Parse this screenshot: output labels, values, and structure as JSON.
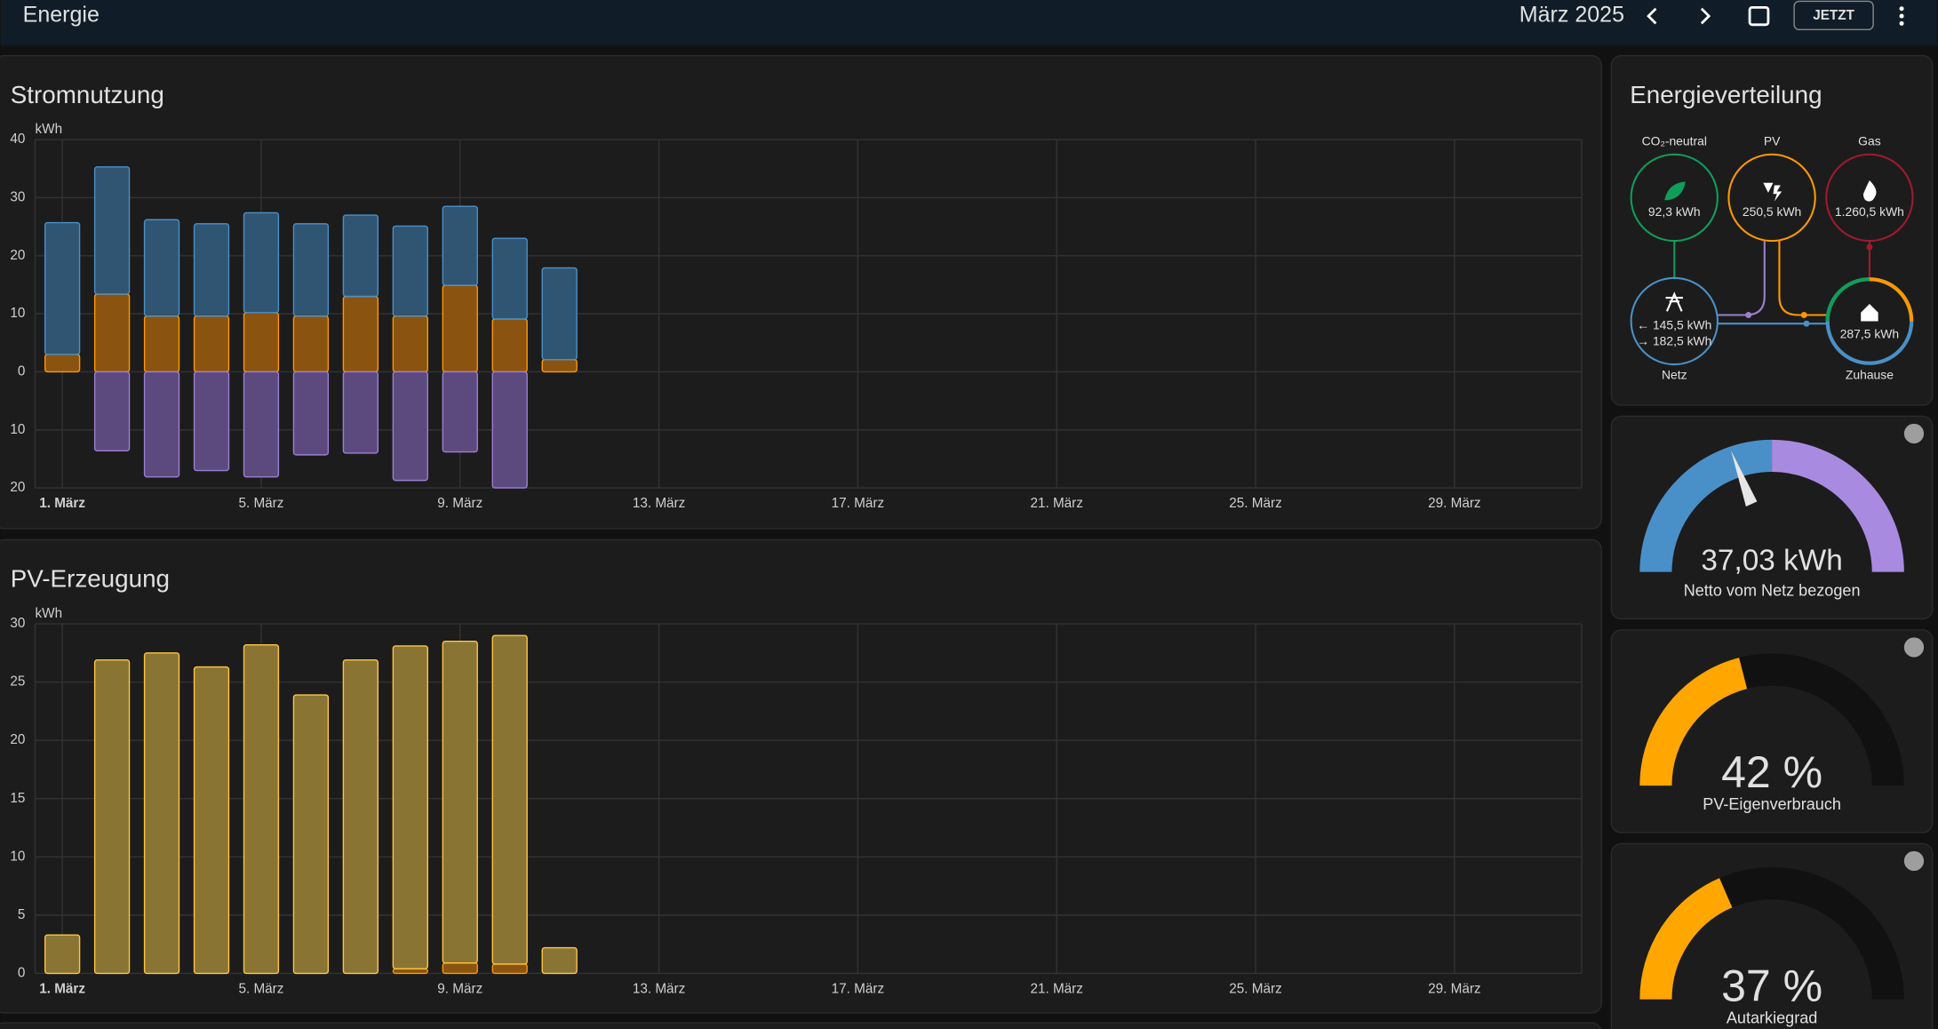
{
  "header": {
    "title": "Energie",
    "period": "März 2025",
    "today_button": "JETZT"
  },
  "chart_data": [
    {
      "type": "bar",
      "stacked": true,
      "title": "Stromnutzung",
      "y_label": "kWh",
      "categories": [
        "1. März",
        null,
        null,
        null,
        "5. März",
        null,
        null,
        null,
        "9. März",
        null,
        null,
        null,
        "13. März",
        null,
        null,
        null,
        "17. März",
        null,
        null,
        null,
        "21. März",
        null,
        null,
        null,
        "25. März",
        null,
        null,
        null,
        "29. März",
        null,
        null
      ],
      "series": [
        {
          "color": "#8a5410",
          "stroke": "#ff9800",
          "values": [
            3.0,
            13.4,
            9.6,
            9.6,
            10.2,
            9.6,
            13.0,
            9.6,
            14.9,
            9.1,
            2.1,
            null,
            null,
            null,
            null,
            null,
            null,
            null,
            null,
            null,
            null,
            null,
            null,
            null,
            null,
            null,
            null,
            null,
            null,
            null,
            null
          ]
        },
        {
          "color": "#2f5573",
          "stroke": "#4a90c8",
          "values": [
            22.7,
            21.9,
            16.6,
            15.9,
            17.2,
            15.9,
            14.0,
            15.5,
            13.6,
            13.9,
            15.8,
            null,
            null,
            null,
            null,
            null,
            null,
            null,
            null,
            null,
            null,
            null,
            null,
            null,
            null,
            null,
            null,
            null,
            null,
            null,
            null
          ]
        },
        {
          "color": "#5c4a7e",
          "stroke": "#9b7fd0",
          "values": [
            0,
            -13.6,
            -18.1,
            -17.0,
            -18.1,
            -14.3,
            -14.0,
            -18.7,
            -13.8,
            -20.0,
            0,
            null,
            null,
            null,
            null,
            null,
            null,
            null,
            null,
            null,
            null,
            null,
            null,
            null,
            null,
            null,
            null,
            null,
            null,
            null,
            null
          ]
        }
      ],
      "ylim": [
        -20,
        40
      ],
      "yticks": [
        {
          "value": -20,
          "label": "20"
        },
        {
          "value": -10,
          "label": "10"
        },
        0,
        10,
        20,
        30,
        40
      ],
      "grid": true
    },
    {
      "type": "bar",
      "stacked": true,
      "title": "PV-Erzeugung",
      "y_label": "kWh",
      "categories": [
        "1. März",
        null,
        null,
        null,
        "5. März",
        null,
        null,
        null,
        "9. März",
        null,
        null,
        null,
        "13. März",
        null,
        null,
        null,
        "17. März",
        null,
        null,
        null,
        "21. März",
        null,
        null,
        null,
        "25. März",
        null,
        null,
        null,
        "29. März",
        null,
        null
      ],
      "series": [
        {
          "color": "#8a5410",
          "stroke": "#ff9800",
          "values": [
            0,
            0,
            0,
            0,
            0,
            0,
            0,
            0.4,
            0.9,
            0.8,
            0,
            null,
            null,
            null,
            null,
            null,
            null,
            null,
            null,
            null,
            null,
            null,
            null,
            null,
            null,
            null,
            null,
            null,
            null,
            null,
            null
          ]
        },
        {
          "color": "#8a7434",
          "stroke": "#ffc640",
          "values": [
            3.3,
            26.9,
            27.5,
            26.3,
            28.2,
            23.9,
            26.9,
            27.7,
            27.6,
            28.2,
            2.2,
            null,
            null,
            null,
            null,
            null,
            null,
            null,
            null,
            null,
            null,
            null,
            null,
            null,
            null,
            null,
            null,
            null,
            null,
            null,
            null
          ]
        }
      ],
      "ylim": [
        0,
        30
      ],
      "yticks": [
        0,
        5,
        10,
        15,
        20,
        25,
        30
      ],
      "grid": true
    }
  ],
  "distribution": {
    "title": "Energieverteilung",
    "nodes": [
      {
        "label": "CO₂-neutral",
        "value": "92,3 kWh"
      },
      {
        "label": "PV",
        "value": "250,5 kWh"
      },
      {
        "label": "Gas",
        "value": "1.260,5 kWh"
      },
      {
        "label": "Netz",
        "import": "← 145,5 kWh",
        "export": "→ 182,5 kWh"
      },
      {
        "label": "Zuhause",
        "value": "287,5 kWh"
      }
    ]
  },
  "gauges": [
    {
      "value_label": "37,03 kWh",
      "label": "Netto vom Netz bezogen"
    },
    {
      "value": 42,
      "value_label": "42 %",
      "label": "PV-Eigenverbrauch"
    },
    {
      "value": 37,
      "value_label": "37 %",
      "label": "Autarkiegrad"
    }
  ]
}
